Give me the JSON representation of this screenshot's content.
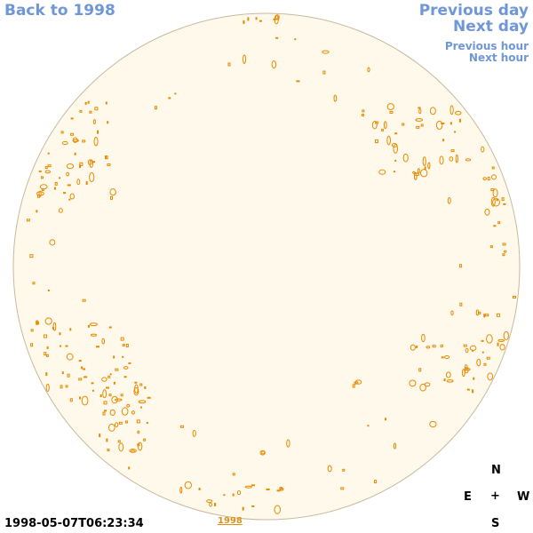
{
  "nav": {
    "back": "Back to 1998",
    "previous_day": "Previous day",
    "next_day": "Next day",
    "previous_hour": "Previous hour",
    "next_hour": "Next hour"
  },
  "timestamp": "1998-05-07T06:23:34",
  "year_link": "1998",
  "compass": {
    "north": "N",
    "east": "E",
    "center": "+",
    "west": "W",
    "south": "S"
  },
  "colors": {
    "disk_fill": "#fff9ec",
    "disk_stroke": "#c9b99c",
    "contour": "#e88a00",
    "nav_link": "#6f97d8"
  }
}
